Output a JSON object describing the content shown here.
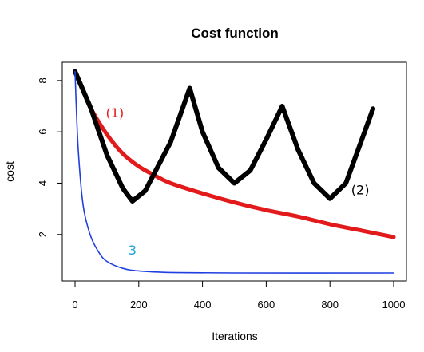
{
  "chart_data": {
    "type": "line",
    "title": "Cost function",
    "xlabel": "Iterations",
    "ylabel": "cost",
    "xlim": [
      0,
      1000
    ],
    "ylim": [
      0.5,
      8.4
    ],
    "xticks": [
      0,
      200,
      400,
      600,
      800,
      1000
    ],
    "yticks": [
      2,
      4,
      6,
      8
    ],
    "grid": false,
    "legend": "none",
    "series": [
      {
        "color": "#e31a1c",
        "x": [
          0,
          25,
          50,
          100,
          150,
          200,
          250,
          300,
          400,
          500,
          600,
          700,
          800,
          900,
          1000
        ],
        "y": [
          8.35,
          7.6,
          6.9,
          5.9,
          5.15,
          4.65,
          4.3,
          4.0,
          3.6,
          3.25,
          2.95,
          2.7,
          2.4,
          2.15,
          1.9
        ]
      },
      {
        "color": "#000000",
        "x": [
          0,
          50,
          100,
          150,
          180,
          220,
          300,
          360,
          400,
          450,
          500,
          550,
          600,
          650,
          700,
          750,
          800,
          850,
          900,
          935
        ],
        "y": [
          8.35,
          6.9,
          5.1,
          3.8,
          3.3,
          3.7,
          5.6,
          7.7,
          6.0,
          4.6,
          4.0,
          4.5,
          5.7,
          7.0,
          5.3,
          4.0,
          3.4,
          4.0,
          5.7,
          6.9
        ]
      },
      {
        "color": "#1f3fe0",
        "x": [
          0,
          5,
          10,
          20,
          30,
          50,
          75,
          100,
          150,
          200,
          300,
          500,
          1000
        ],
        "y": [
          8.35,
          6.6,
          5.3,
          3.7,
          2.8,
          1.9,
          1.3,
          0.95,
          0.68,
          0.58,
          0.52,
          0.5,
          0.5
        ]
      }
    ],
    "annotations": [
      {
        "text": "(1)",
        "x": 125,
        "y": 6.75,
        "color": "#e31a1c"
      },
      {
        "text": "(2)",
        "x": 895,
        "y": 3.75,
        "color": "#000000"
      },
      {
        "text": "3",
        "x": 180,
        "y": 1.4,
        "color": "#1ca0d8"
      }
    ]
  }
}
